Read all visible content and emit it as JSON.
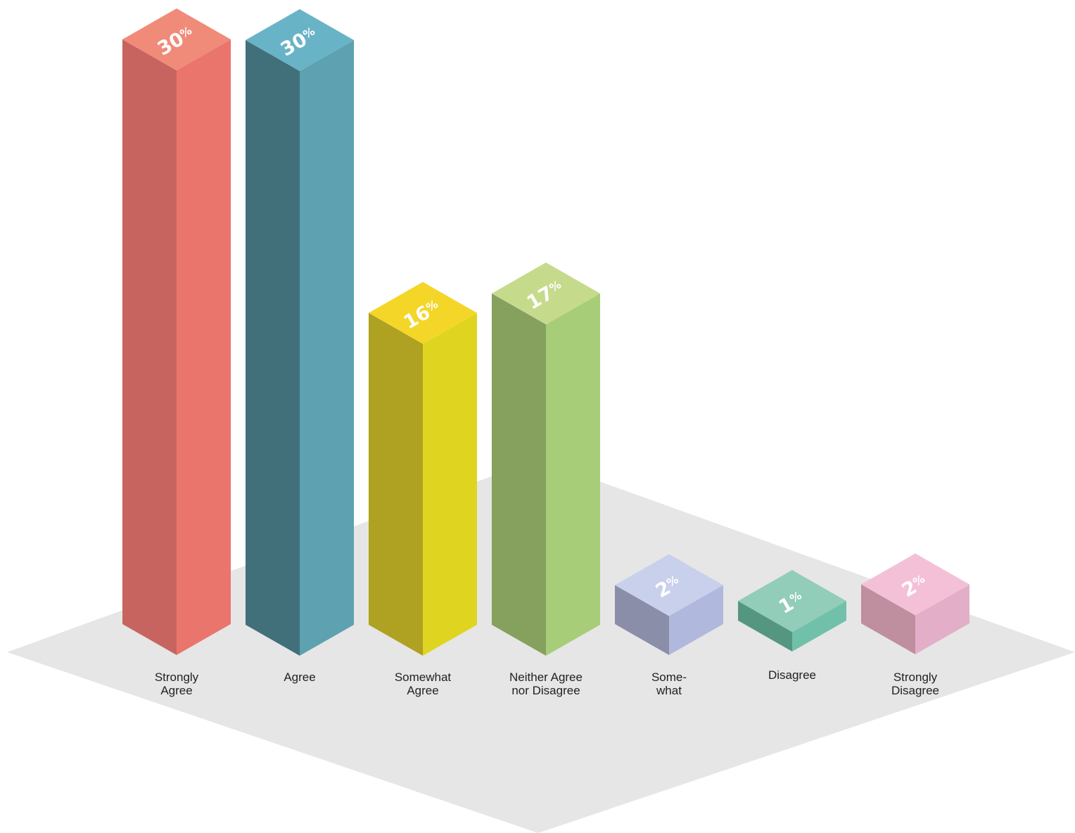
{
  "chart_data": {
    "type": "bar",
    "title": "",
    "xlabel": "",
    "ylabel": "",
    "ylim": [
      0,
      30
    ],
    "grid": false,
    "legend": "none",
    "categories": [
      [
        "Strongly",
        "Agree"
      ],
      [
        "Agree"
      ],
      [
        "Somewhat",
        "Agree"
      ],
      [
        "Neither Agree",
        "nor Disagree"
      ],
      [
        "Some-",
        "what"
      ],
      [
        "Disagree"
      ],
      [
        "Strongly",
        "Disagree"
      ]
    ],
    "values": [
      30,
      30,
      16,
      17,
      2,
      1,
      2
    ],
    "value_suffix": "%",
    "colors": [
      {
        "left": "#c76460",
        "right": "#ea756c",
        "top": "#f08b79"
      },
      {
        "left": "#416f7a",
        "right": "#5ea1b0",
        "top": "#69b3c7"
      },
      {
        "left": "#afa121",
        "right": "#dfd521",
        "top": "#f4d629"
      },
      {
        "left": "#86a05e",
        "right": "#a8cd78",
        "top": "#c6da8c"
      },
      {
        "left": "#8a8ea9",
        "right": "#b1b8dd",
        "top": "#c8d0ec"
      },
      {
        "left": "#559681",
        "right": "#71c1aa",
        "top": "#91cdb9"
      },
      {
        "left": "#bf8e9f",
        "right": "#e3afc8",
        "top": "#f4c0d8"
      }
    ],
    "floor_color": "#e6e6e6"
  }
}
